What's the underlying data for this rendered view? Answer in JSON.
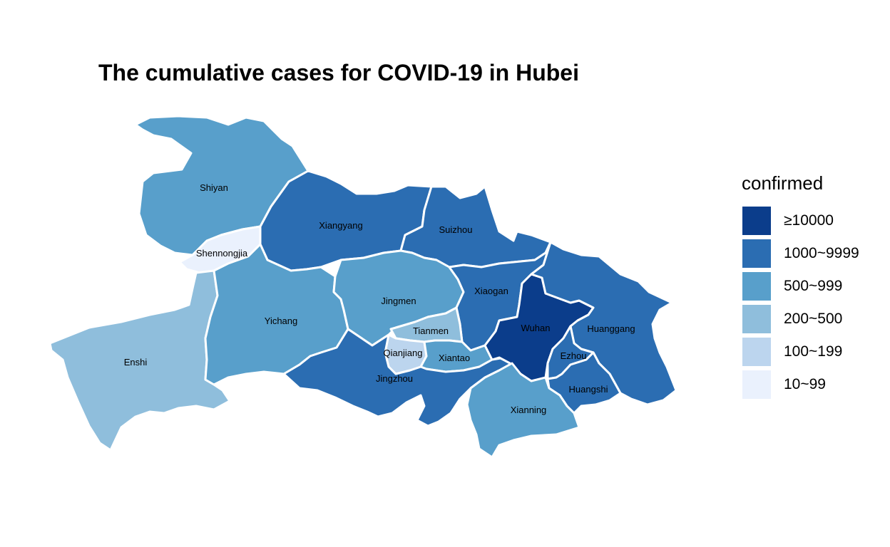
{
  "title": "The cumulative cases for COVID-19 in Hubei",
  "legend": {
    "title": "confirmed",
    "classes": [
      {
        "label": "≥10000",
        "color": "#0b3d8b"
      },
      {
        "label": "1000~9999",
        "color": "#2b6db2"
      },
      {
        "label": "500~999",
        "color": "#589fcb"
      },
      {
        "label": "200~500",
        "color": "#8fbedc"
      },
      {
        "label": "100~199",
        "color": "#bcd5ee"
      },
      {
        "label": "10~99",
        "color": "#eaf1fd"
      }
    ]
  },
  "regions": [
    {
      "name": "Shiyan",
      "class": "500~999"
    },
    {
      "name": "Xiangyang",
      "class": "1000~9999"
    },
    {
      "name": "Suizhou",
      "class": "1000~9999"
    },
    {
      "name": "Shennongjia",
      "class": "10~99"
    },
    {
      "name": "Enshi",
      "class": "200~500"
    },
    {
      "name": "Yichang",
      "class": "500~999"
    },
    {
      "name": "Jingmen",
      "class": "500~999"
    },
    {
      "name": "Xiaogan",
      "class": "1000~9999"
    },
    {
      "name": "Tianmen",
      "class": "200~500"
    },
    {
      "name": "Qianjiang",
      "class": "100~199"
    },
    {
      "name": "Xiantao",
      "class": "500~999"
    },
    {
      "name": "Jingzhou",
      "class": "1000~9999"
    },
    {
      "name": "Wuhan",
      "class": "≥10000"
    },
    {
      "name": "Huanggang",
      "class": "1000~9999"
    },
    {
      "name": "Ezhou",
      "class": "1000~9999"
    },
    {
      "name": "Huangshi",
      "class": "1000~9999"
    },
    {
      "name": "Xianning",
      "class": "500~999"
    }
  ]
}
